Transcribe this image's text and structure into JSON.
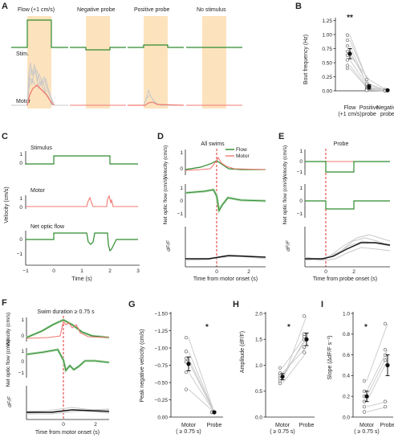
{
  "colors": {
    "flow": "#2e8b2e",
    "motor": "#f07a72",
    "gray": "#c8c8c8",
    "shade": "#fde3bd",
    "probe_line": "#e03030",
    "black": "#111111"
  },
  "panel_labels": {
    "A": "A",
    "B": "B",
    "C": "C",
    "D": "D",
    "E": "E",
    "F": "F",
    "G": "G",
    "H": "H",
    "I": "I"
  },
  "panel_A": {
    "conditions": [
      "Flow (+1 cm/s)",
      "Negative probe",
      "Positive probe",
      "No stimulus"
    ],
    "row_labels": {
      "stim": "Stim.",
      "motor": "Motor"
    }
  },
  "panel_C": {
    "subtitles": [
      "Stimulus",
      "Motor",
      "Net optic flow"
    ],
    "ylabel": "Velocity (cm/s)",
    "xlabel": "Time (s)",
    "xticks": [
      "−1",
      "0",
      "1",
      "2",
      "3"
    ],
    "yticks": {
      "stimulus": [
        "1",
        "0"
      ],
      "motor": [
        "1",
        "0"
      ],
      "flow": [
        "0",
        "−1"
      ]
    }
  },
  "panel_D": {
    "title": "All swims",
    "legend": [
      "Flow",
      "Motor"
    ],
    "ylabels": [
      "Velocity (cm/s)",
      "Net optic flow (cm/s)",
      "dF/F"
    ],
    "xlabel": "Time from motor onset (s)",
    "xticks": [
      "0",
      "2"
    ],
    "yticks": {
      "velocity": [
        "1",
        "0"
      ],
      "flow": [
        "1",
        "0",
        "−1"
      ]
    }
  },
  "panel_E": {
    "title": "Probe",
    "ylabels": [
      "Velocity (cm/s)",
      "Net optic flow (cm/s)",
      "dF/F"
    ],
    "xlabel": "Time from probe onset (s)",
    "xticks": [
      "0",
      "2"
    ],
    "yticks": {
      "velocity": [
        "1",
        "0",
        "−1"
      ],
      "flow": [
        "1",
        "0",
        "−1"
      ]
    }
  },
  "panel_F": {
    "title": "Swim duration  ≥  0.75 s",
    "ylabels": [
      "Velocity (cm/s)",
      "Net optic flow (cm/s)",
      "dF/F"
    ],
    "xlabel": "Time from motor onset (s)",
    "xticks": [
      "0",
      "2"
    ],
    "yticks": {
      "velocity": [
        "1",
        "0"
      ],
      "flow": [
        "1",
        "0",
        "−1"
      ]
    }
  },
  "chart_data": [
    {
      "type": "scatter",
      "panel": "B",
      "ylabel": "Bout frequency (Hz)",
      "categories": [
        "Flow\n(+1 cm/s)",
        "Positive\nprobe",
        "Negative\nprobe"
      ],
      "yticks": [
        "0.00",
        "0.25",
        "0.50",
        "0.75",
        "1.00",
        "1.25"
      ],
      "ylim": [
        0,
        1.3
      ],
      "means": [
        0.66,
        0.07,
        0.01
      ],
      "errors": [
        0.09,
        0.04,
        0.01
      ],
      "paired_lines": [
        [
          0.99,
          0.1,
          0.0
        ],
        [
          0.9,
          0.12,
          0.0
        ],
        [
          0.8,
          0.03,
          0.0
        ],
        [
          0.7,
          0.06,
          0.01
        ],
        [
          0.63,
          0.2,
          0.0
        ],
        [
          0.55,
          0.04,
          0.02
        ],
        [
          0.45,
          0.02,
          0.0
        ],
        [
          0.4,
          0.01,
          0.0
        ]
      ],
      "annotation": "**"
    },
    {
      "type": "scatter",
      "panel": "G",
      "ylabel": "Peak negative velocity (cm/s)",
      "categories": [
        "Motor\n( ≥ 0.75 s)",
        "Probe"
      ],
      "yticks": [
        "−1.50",
        "−1.25",
        "−1.00",
        "−0.75",
        "−0.50",
        "−0.25",
        "0.00"
      ],
      "ylim": [
        -1.5,
        0
      ],
      "means": [
        -0.77,
        -0.07
      ],
      "errors": [
        0.1,
        0.01
      ],
      "paired_lines": [
        [
          -1.15,
          -0.07
        ],
        [
          -0.95,
          -0.07
        ],
        [
          -0.85,
          -0.07
        ],
        [
          -0.8,
          -0.07
        ],
        [
          -0.65,
          -0.07
        ],
        [
          -0.4,
          -0.07
        ]
      ],
      "annotation": "*"
    },
    {
      "type": "scatter",
      "panel": "H",
      "ylabel": "Amplitude (dF/F)",
      "categories": [
        "Motor\n( ≥ 0.75 s)",
        "Probe"
      ],
      "yticks": [
        "0.0",
        "0.5",
        "1.0",
        "1.5",
        "2.0"
      ],
      "ylim": [
        0,
        2.0
      ],
      "means": [
        0.78,
        1.5
      ],
      "errors": [
        0.06,
        0.12
      ],
      "paired_lines": [
        [
          0.7,
          1.95
        ],
        [
          0.75,
          1.55
        ],
        [
          0.8,
          1.5
        ],
        [
          0.85,
          1.35
        ],
        [
          0.65,
          1.25
        ],
        [
          0.95,
          1.6
        ]
      ],
      "annotation": "*"
    },
    {
      "type": "scatter",
      "panel": "I",
      "ylabel": "Slope (ΔdF/F s⁻¹)",
      "categories": [
        "Motor\n( ≥ 0.75 s)",
        "Probe"
      ],
      "yticks": [
        "0.0",
        "0.2",
        "0.4",
        "0.6",
        "0.8",
        "1.0"
      ],
      "ylim": [
        0,
        1.0
      ],
      "means": [
        0.2,
        0.5
      ],
      "errors": [
        0.05,
        0.1
      ],
      "paired_lines": [
        [
          0.35,
          0.9
        ],
        [
          0.25,
          0.65
        ],
        [
          0.2,
          0.6
        ],
        [
          0.15,
          0.55
        ],
        [
          0.1,
          0.15
        ],
        [
          0.05,
          0.1
        ]
      ],
      "annotation": "*"
    }
  ]
}
